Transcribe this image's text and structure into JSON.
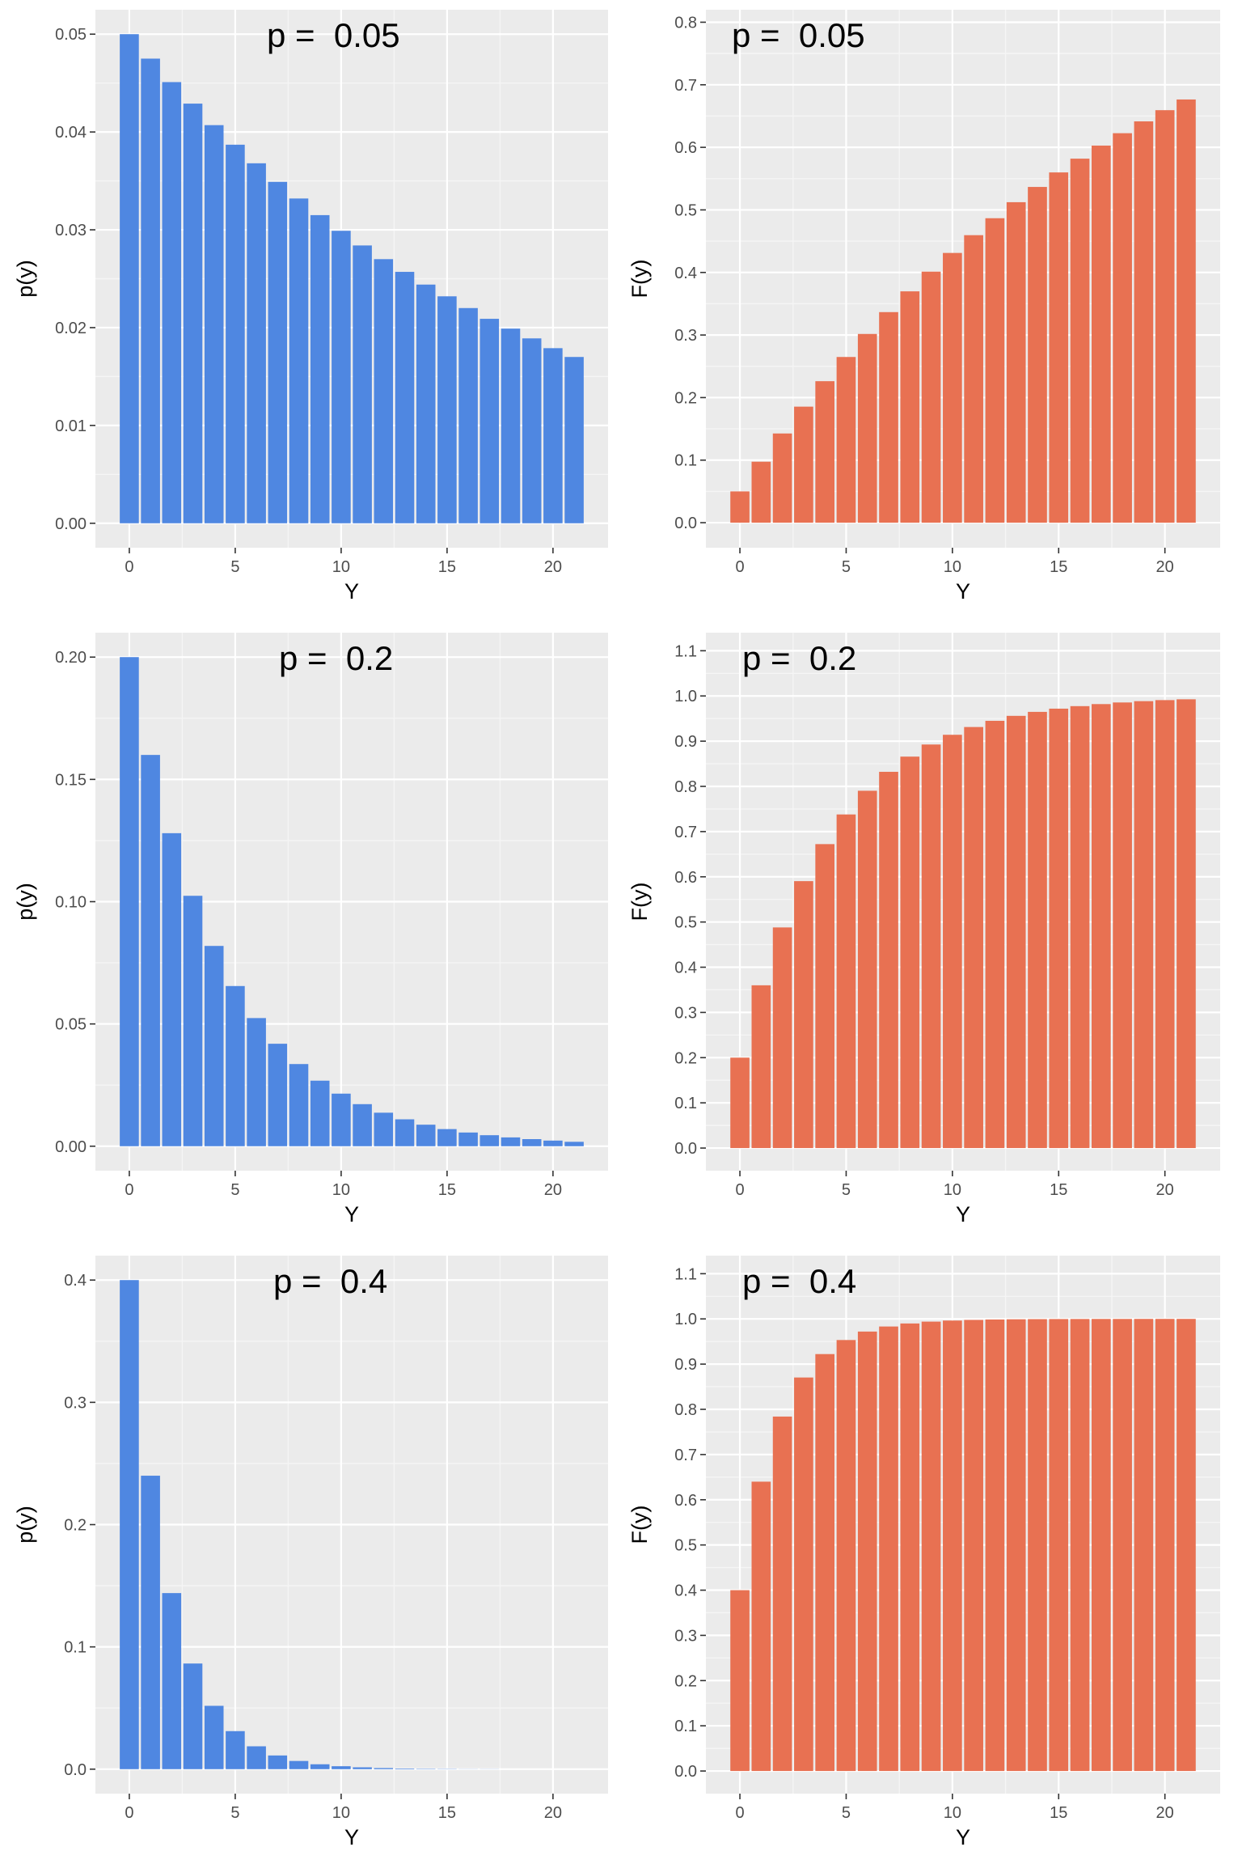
{
  "colors": {
    "panel_bg": "#EBEBEB",
    "grid_major": "#FFFFFF",
    "grid_minor": "#F5F5F5",
    "pmf_bar": "#4F87E1",
    "cdf_bar": "#E87152",
    "tick_text": "#4D4D4D",
    "label_text": "#000000"
  },
  "chart_data": [
    {
      "type": "bar",
      "id": "pmf-p005",
      "title": "p =  0.05",
      "xlabel": "Y",
      "ylabel": "p(y)",
      "x": [
        0,
        1,
        2,
        3,
        4,
        5,
        6,
        7,
        8,
        9,
        10,
        11,
        12,
        13,
        14,
        15,
        16,
        17,
        18,
        19,
        20,
        21
      ],
      "values": [
        0.05,
        0.0475,
        0.0451,
        0.0429,
        0.0407,
        0.0387,
        0.0368,
        0.0349,
        0.0332,
        0.0315,
        0.0299,
        0.0284,
        0.027,
        0.0257,
        0.0244,
        0.0232,
        0.022,
        0.0209,
        0.0199,
        0.0189,
        0.0179,
        0.017
      ],
      "xlim": [
        -1.6,
        22.6
      ],
      "ylim": [
        -0.0025,
        0.0525
      ],
      "xticks": [
        0,
        5,
        10,
        15,
        20
      ],
      "yticks": [
        0,
        0.01,
        0.02,
        0.03,
        0.04,
        0.05
      ],
      "ytick_labels": [
        "0.00",
        "0.01",
        "0.02",
        "0.03",
        "0.04",
        "0.05"
      ],
      "grid": true
    },
    {
      "type": "bar",
      "id": "cdf-p005",
      "title": "p =  0.05",
      "xlabel": "Y",
      "ylabel": "F(y)",
      "x": [
        0,
        1,
        2,
        3,
        4,
        5,
        6,
        7,
        8,
        9,
        10,
        11,
        12,
        13,
        14,
        15,
        16,
        17,
        18,
        19,
        20,
        21
      ],
      "values": [
        0.05,
        0.0975,
        0.1426,
        0.1855,
        0.2262,
        0.2649,
        0.3017,
        0.3366,
        0.3698,
        0.4013,
        0.4312,
        0.4596,
        0.4867,
        0.5123,
        0.5367,
        0.5599,
        0.5819,
        0.6028,
        0.6226,
        0.6415,
        0.6594,
        0.6765
      ],
      "xlim": [
        -1.6,
        22.6
      ],
      "ylim": [
        -0.04,
        0.82
      ],
      "xticks": [
        0,
        5,
        10,
        15,
        20
      ],
      "yticks": [
        0,
        0.1,
        0.2,
        0.3,
        0.4,
        0.5,
        0.6,
        0.7,
        0.8
      ],
      "ytick_labels": [
        "0.0",
        "0.1",
        "0.2",
        "0.3",
        "0.4",
        "0.5",
        "0.6",
        "0.7",
        "0.8"
      ],
      "grid": true
    },
    {
      "type": "bar",
      "id": "pmf-p02",
      "title": "p =  0.2",
      "xlabel": "Y",
      "ylabel": "p(y)",
      "x": [
        0,
        1,
        2,
        3,
        4,
        5,
        6,
        7,
        8,
        9,
        10,
        11,
        12,
        13,
        14,
        15,
        16,
        17,
        18,
        19,
        20,
        21
      ],
      "values": [
        0.2,
        0.16,
        0.128,
        0.1024,
        0.0819,
        0.0655,
        0.0524,
        0.0419,
        0.0336,
        0.0268,
        0.0215,
        0.0172,
        0.0137,
        0.011,
        0.0088,
        0.007,
        0.0056,
        0.0045,
        0.0036,
        0.0029,
        0.0023,
        0.0018
      ],
      "xlim": [
        -1.6,
        22.6
      ],
      "ylim": [
        -0.01,
        0.21
      ],
      "xticks": [
        0,
        5,
        10,
        15,
        20
      ],
      "yticks": [
        0,
        0.05,
        0.1,
        0.15,
        0.2
      ],
      "ytick_labels": [
        "0.00",
        "0.05",
        "0.10",
        "0.15",
        "0.20"
      ],
      "grid": true
    },
    {
      "type": "bar",
      "id": "cdf-p02",
      "title": "p =  0.2",
      "xlabel": "Y",
      "ylabel": "F(y)",
      "x": [
        0,
        1,
        2,
        3,
        4,
        5,
        6,
        7,
        8,
        9,
        10,
        11,
        12,
        13,
        14,
        15,
        16,
        17,
        18,
        19,
        20,
        21
      ],
      "values": [
        0.2,
        0.36,
        0.488,
        0.5904,
        0.6723,
        0.7379,
        0.7903,
        0.8322,
        0.8658,
        0.8926,
        0.9141,
        0.9313,
        0.945,
        0.956,
        0.9648,
        0.9719,
        0.9775,
        0.982,
        0.9856,
        0.9885,
        0.9908,
        0.9926
      ],
      "xlim": [
        -1.6,
        22.6
      ],
      "ylim": [
        -0.05,
        1.14
      ],
      "xticks": [
        0,
        5,
        10,
        15,
        20
      ],
      "yticks": [
        0,
        0.1,
        0.2,
        0.3,
        0.4,
        0.5,
        0.6,
        0.7,
        0.8,
        0.9,
        1.0,
        1.1
      ],
      "ytick_labels": [
        "0.0",
        "0.1",
        "0.2",
        "0.3",
        "0.4",
        "0.5",
        "0.6",
        "0.7",
        "0.8",
        "0.9",
        "1.0",
        "1.1"
      ],
      "grid": true
    },
    {
      "type": "bar",
      "id": "pmf-p04",
      "title": "p =  0.4",
      "xlabel": "Y",
      "ylabel": "p(y)",
      "x": [
        0,
        1,
        2,
        3,
        4,
        5,
        6,
        7,
        8,
        9,
        10,
        11,
        12,
        13,
        14,
        15,
        16,
        17,
        18,
        19,
        20,
        21
      ],
      "values": [
        0.4,
        0.24,
        0.144,
        0.0864,
        0.0518,
        0.0311,
        0.0187,
        0.0112,
        0.0067,
        0.004,
        0.0024,
        0.0015,
        0.0009,
        0.0005,
        0.0003,
        0.0002,
        0.0001,
        0.0001,
        0,
        0,
        0,
        0
      ],
      "xlim": [
        -1.6,
        22.6
      ],
      "ylim": [
        -0.02,
        0.42
      ],
      "xticks": [
        0,
        5,
        10,
        15,
        20
      ],
      "yticks": [
        0,
        0.1,
        0.2,
        0.3,
        0.4
      ],
      "ytick_labels": [
        "0.0",
        "0.1",
        "0.2",
        "0.3",
        "0.4"
      ],
      "grid": true
    },
    {
      "type": "bar",
      "id": "cdf-p04",
      "title": "p =  0.4",
      "xlabel": "Y",
      "ylabel": "F(y)",
      "x": [
        0,
        1,
        2,
        3,
        4,
        5,
        6,
        7,
        8,
        9,
        10,
        11,
        12,
        13,
        14,
        15,
        16,
        17,
        18,
        19,
        20,
        21
      ],
      "values": [
        0.4,
        0.64,
        0.784,
        0.8704,
        0.9222,
        0.9533,
        0.972,
        0.9832,
        0.9899,
        0.994,
        0.9964,
        0.9978,
        0.9987,
        0.9992,
        0.9995,
        0.9997,
        0.9998,
        0.9999,
        0.9999,
        1.0,
        1.0,
        1.0
      ],
      "xlim": [
        -1.6,
        22.6
      ],
      "ylim": [
        -0.05,
        1.14
      ],
      "xticks": [
        0,
        5,
        10,
        15,
        20
      ],
      "yticks": [
        0,
        0.1,
        0.2,
        0.3,
        0.4,
        0.5,
        0.6,
        0.7,
        0.8,
        0.9,
        1.0,
        1.1
      ],
      "ytick_labels": [
        "0.0",
        "0.1",
        "0.2",
        "0.3",
        "0.4",
        "0.5",
        "0.6",
        "0.7",
        "0.8",
        "0.9",
        "1.0",
        "1.1"
      ],
      "grid": true
    }
  ]
}
